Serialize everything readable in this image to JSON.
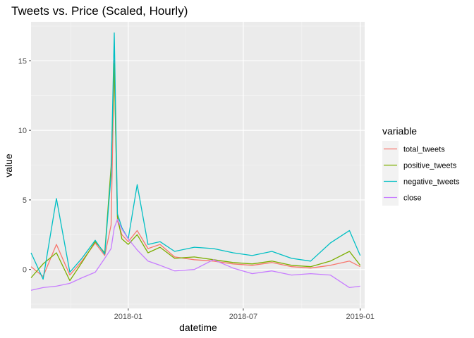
{
  "chart_data": {
    "type": "line",
    "title": "Tweets vs. Price (Scaled, Hourly)",
    "xlabel": "datetime",
    "ylabel": "value",
    "x_range": [
      "2017-08-01",
      "2019-01-08"
    ],
    "ylim": [
      -2.8,
      17.8
    ],
    "x_ticks": [
      {
        "date": "2018-01-01",
        "label": "2018-01"
      },
      {
        "date": "2018-07-01",
        "label": "2018-07"
      },
      {
        "date": "2019-01-01",
        "label": "2019-01"
      }
    ],
    "y_ticks": [
      0,
      5,
      10,
      15
    ],
    "grid": true,
    "legend": {
      "title": "variable",
      "position": "right"
    },
    "series": [
      {
        "name": "total_tweets",
        "color": "#F8766D",
        "x": [
          "2017-08-01",
          "2017-08-20",
          "2017-09-10",
          "2017-10-01",
          "2017-10-20",
          "2017-11-10",
          "2017-11-25",
          "2017-12-05",
          "2017-12-10",
          "2017-12-15",
          "2017-12-22",
          "2018-01-01",
          "2018-01-15",
          "2018-02-01",
          "2018-02-20",
          "2018-03-15",
          "2018-04-15",
          "2018-05-15",
          "2018-06-15",
          "2018-07-15",
          "2018-08-15",
          "2018-09-15",
          "2018-10-15",
          "2018-11-15",
          "2018-12-15",
          "2019-01-01"
        ],
        "values": [
          0.2,
          -0.5,
          1.8,
          -0.4,
          0.6,
          1.9,
          1.0,
          3.2,
          15.0,
          3.5,
          2.5,
          2.0,
          2.8,
          1.5,
          1.8,
          0.9,
          0.7,
          0.6,
          0.4,
          0.3,
          0.5,
          0.2,
          0.1,
          0.3,
          0.6,
          0.2
        ]
      },
      {
        "name": "positive_tweets",
        "color": "#7CAE00",
        "x": [
          "2017-08-01",
          "2017-08-20",
          "2017-09-10",
          "2017-10-01",
          "2017-10-20",
          "2017-11-10",
          "2017-11-25",
          "2017-12-05",
          "2017-12-10",
          "2017-12-15",
          "2017-12-22",
          "2018-01-01",
          "2018-01-15",
          "2018-02-01",
          "2018-02-20",
          "2018-03-15",
          "2018-04-15",
          "2018-05-15",
          "2018-06-15",
          "2018-07-15",
          "2018-08-15",
          "2018-09-15",
          "2018-10-15",
          "2018-11-15",
          "2018-12-15",
          "2019-01-01"
        ],
        "values": [
          -0.6,
          0.4,
          1.2,
          -0.8,
          0.5,
          2.0,
          1.2,
          7.4,
          14.8,
          3.8,
          2.2,
          1.8,
          2.5,
          1.2,
          1.6,
          0.8,
          0.9,
          0.7,
          0.5,
          0.4,
          0.6,
          0.3,
          0.2,
          0.6,
          1.3,
          0.3
        ]
      },
      {
        "name": "negative_tweets",
        "color": "#00BFC4",
        "x": [
          "2017-08-01",
          "2017-08-20",
          "2017-09-10",
          "2017-10-01",
          "2017-10-20",
          "2017-11-10",
          "2017-11-25",
          "2017-12-05",
          "2017-12-10",
          "2017-12-15",
          "2017-12-22",
          "2018-01-01",
          "2018-01-15",
          "2018-02-01",
          "2018-02-20",
          "2018-03-15",
          "2018-04-15",
          "2018-05-15",
          "2018-06-15",
          "2018-07-15",
          "2018-08-15",
          "2018-09-15",
          "2018-10-15",
          "2018-11-15",
          "2018-12-15",
          "2019-01-01"
        ],
        "values": [
          1.2,
          -0.7,
          5.1,
          -0.2,
          0.8,
          2.1,
          1.1,
          6.8,
          17.0,
          4.0,
          3.0,
          2.2,
          6.1,
          1.8,
          2.0,
          1.3,
          1.6,
          1.5,
          1.2,
          1.0,
          1.3,
          0.8,
          0.6,
          1.9,
          2.8,
          1.0
        ]
      },
      {
        "name": "close",
        "color": "#C77CFF",
        "x": [
          "2017-08-01",
          "2017-08-20",
          "2017-09-10",
          "2017-10-01",
          "2017-10-20",
          "2017-11-10",
          "2017-11-25",
          "2017-12-05",
          "2017-12-10",
          "2017-12-15",
          "2017-12-22",
          "2018-01-01",
          "2018-01-15",
          "2018-02-01",
          "2018-02-20",
          "2018-03-15",
          "2018-04-15",
          "2018-05-15",
          "2018-06-15",
          "2018-07-15",
          "2018-08-15",
          "2018-09-15",
          "2018-10-15",
          "2018-11-15",
          "2018-12-15",
          "2019-01-01"
        ],
        "values": [
          -1.5,
          -1.3,
          -1.2,
          -1.0,
          -0.6,
          -0.2,
          0.8,
          1.5,
          3.0,
          3.6,
          2.9,
          2.2,
          1.4,
          0.6,
          0.3,
          -0.1,
          0.0,
          0.7,
          0.1,
          -0.3,
          -0.1,
          -0.4,
          -0.3,
          -0.4,
          -1.3,
          -1.2
        ]
      }
    ]
  }
}
